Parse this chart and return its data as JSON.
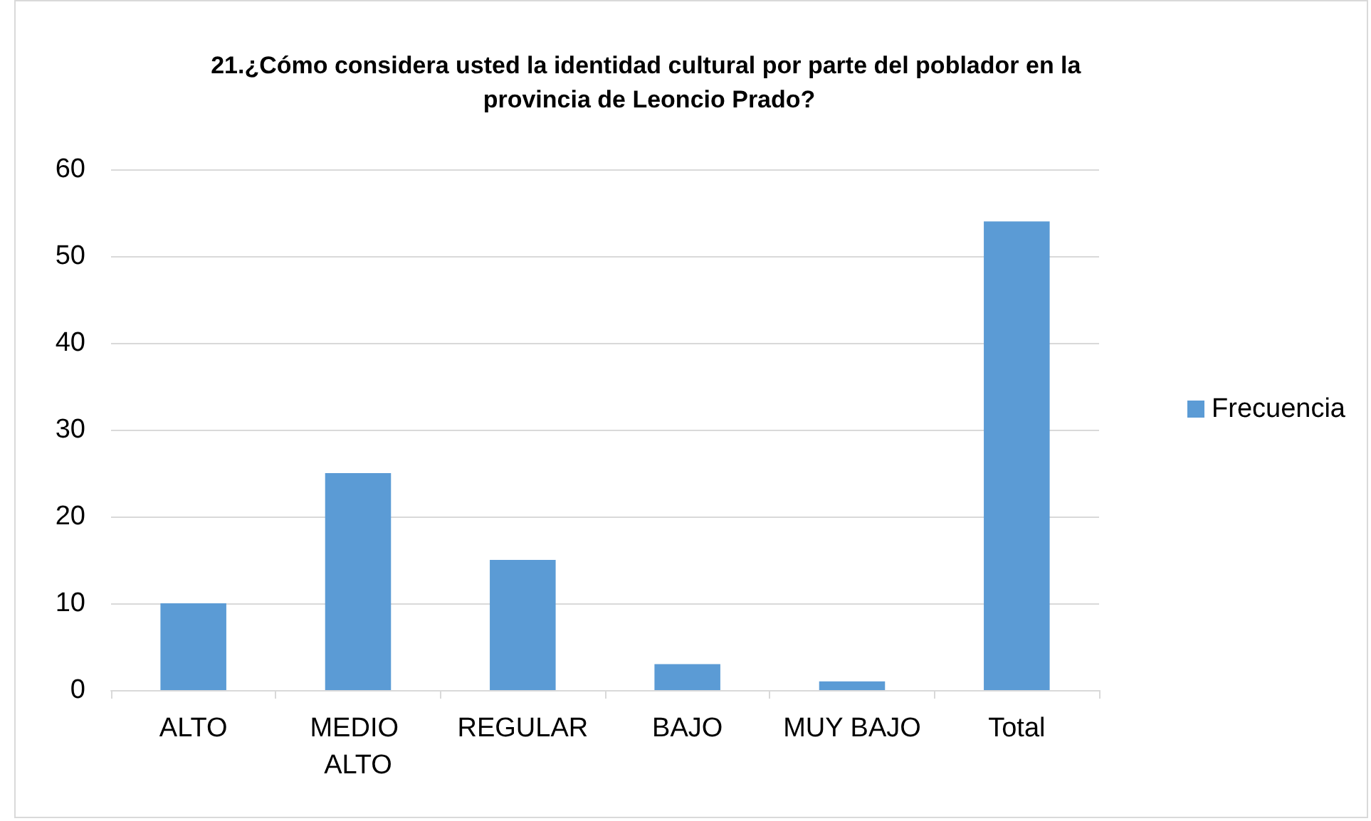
{
  "chart_data": {
    "type": "bar",
    "title": "21.¿Cómo considera usted la identidad cultural por parte del poblador en la provincia de Leoncio Prado?",
    "categories": [
      "ALTO",
      "MEDIO ALTO",
      "REGULAR",
      "BAJO",
      "MUY BAJO",
      "Total"
    ],
    "series": [
      {
        "name": "Frecuencia",
        "color": "#5b9bd5",
        "values": [
          10,
          25,
          15,
          3,
          1,
          54
        ]
      }
    ],
    "ylim": [
      0,
      60
    ],
    "yticks": [
      0,
      10,
      20,
      30,
      40,
      50,
      60
    ],
    "grid": "y",
    "legend": "right"
  }
}
